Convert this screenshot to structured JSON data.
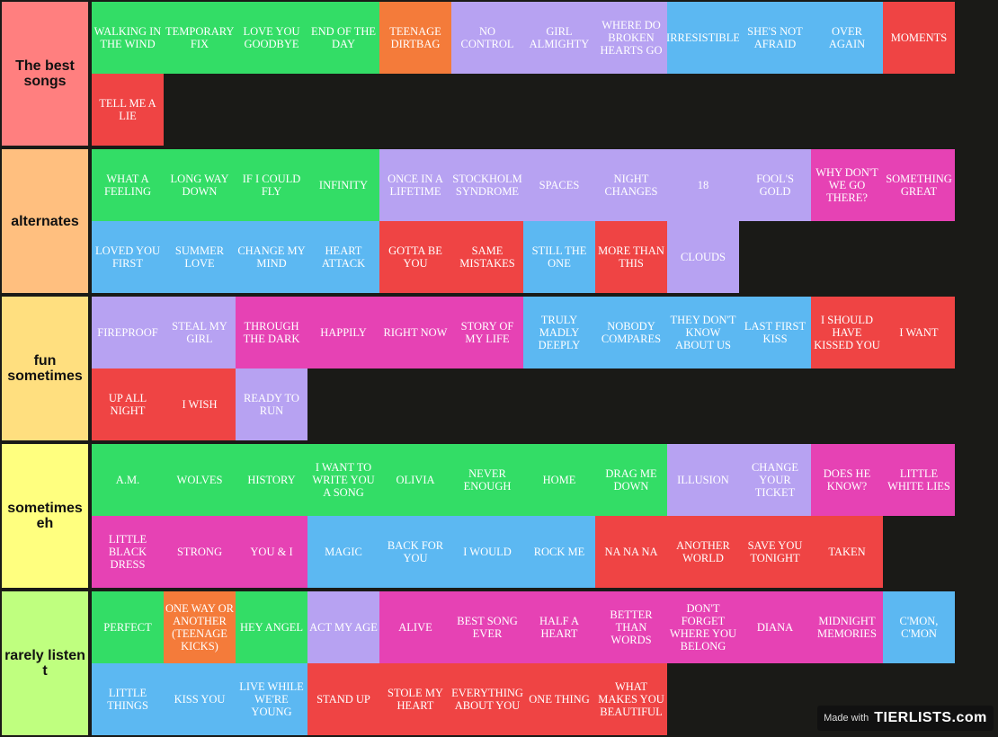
{
  "palette": {
    "green": "#33dd66",
    "orange": "#f47b3a",
    "purple": "#b7a2f2",
    "blue": "#5cb8f2",
    "red": "#ef4444",
    "pink": "#e642b4",
    "background": "#1a1a17"
  },
  "tiers": [
    {
      "label": "The best songs",
      "color": "#ff7f7f",
      "items": [
        {
          "text": "WALKING IN THE WIND",
          "color": "green"
        },
        {
          "text": "TEMPORARY FIX",
          "color": "green"
        },
        {
          "text": "LOVE YOU GOODBYE",
          "color": "green"
        },
        {
          "text": "END OF THE DAY",
          "color": "green"
        },
        {
          "text": "TEENAGE DIRTBAG",
          "color": "orange"
        },
        {
          "text": "NO CONTROL",
          "color": "purple"
        },
        {
          "text": "GIRL ALMIGHTY",
          "color": "purple"
        },
        {
          "text": "WHERE DO BROKEN HEARTS GO",
          "color": "purple"
        },
        {
          "text": "IRRESISTIBLE",
          "color": "blue"
        },
        {
          "text": "SHE'S NOT AFRAID",
          "color": "blue"
        },
        {
          "text": "OVER AGAIN",
          "color": "blue"
        },
        {
          "text": "MOMENTS",
          "color": "red"
        },
        {
          "text": "TELL ME A LIE",
          "color": "red"
        }
      ]
    },
    {
      "label": "alternates",
      "color": "#ffbf7f",
      "items": [
        {
          "text": "WHAT A FEELING",
          "color": "green"
        },
        {
          "text": "LONG WAY DOWN",
          "color": "green"
        },
        {
          "text": "IF I COULD FLY",
          "color": "green"
        },
        {
          "text": "INFINITY",
          "color": "green"
        },
        {
          "text": "ONCE IN A LIFETIME",
          "color": "purple"
        },
        {
          "text": "STOCKHOLM SYNDROME",
          "color": "purple"
        },
        {
          "text": "SPACES",
          "color": "purple"
        },
        {
          "text": "NIGHT CHANGES",
          "color": "purple"
        },
        {
          "text": "18",
          "color": "purple"
        },
        {
          "text": "FOOL'S GOLD",
          "color": "purple"
        },
        {
          "text": "WHY DON'T WE GO THERE?",
          "color": "pink"
        },
        {
          "text": "SOMETHING GREAT",
          "color": "pink"
        },
        {
          "text": "LOVED YOU FIRST",
          "color": "blue"
        },
        {
          "text": "SUMMER LOVE",
          "color": "blue"
        },
        {
          "text": "CHANGE MY MIND",
          "color": "blue"
        },
        {
          "text": "HEART ATTACK",
          "color": "blue"
        },
        {
          "text": "GOTTA BE YOU",
          "color": "red"
        },
        {
          "text": "SAME MISTAKES",
          "color": "red"
        },
        {
          "text": "STILL THE ONE",
          "color": "blue"
        },
        {
          "text": "MORE THAN THIS",
          "color": "red"
        },
        {
          "text": "CLOUDS",
          "color": "purple"
        }
      ]
    },
    {
      "label": "fun sometimes",
      "color": "#ffdf7f",
      "items": [
        {
          "text": "FIREPROOF",
          "color": "purple"
        },
        {
          "text": "STEAL MY GIRL",
          "color": "purple"
        },
        {
          "text": "THROUGH THE DARK",
          "color": "pink"
        },
        {
          "text": "HAPPILY",
          "color": "pink"
        },
        {
          "text": "RIGHT NOW",
          "color": "pink"
        },
        {
          "text": "STORY OF MY LIFE",
          "color": "pink"
        },
        {
          "text": "TRULY MADLY DEEPLY",
          "color": "blue"
        },
        {
          "text": "NOBODY COMPARES",
          "color": "blue"
        },
        {
          "text": "THEY DON'T KNOW ABOUT US",
          "color": "blue"
        },
        {
          "text": "LAST FIRST KISS",
          "color": "blue"
        },
        {
          "text": "I SHOULD HAVE KISSED YOU",
          "color": "red"
        },
        {
          "text": "I WANT",
          "color": "red"
        },
        {
          "text": "UP ALL NIGHT",
          "color": "red"
        },
        {
          "text": "I WISH",
          "color": "red"
        },
        {
          "text": "READY TO RUN",
          "color": "purple"
        }
      ]
    },
    {
      "label": "sometimes eh",
      "color": "#ffff7f",
      "items": [
        {
          "text": "A.M.",
          "color": "green"
        },
        {
          "text": "WOLVES",
          "color": "green"
        },
        {
          "text": "HISTORY",
          "color": "green"
        },
        {
          "text": "I WANT TO WRITE YOU A SONG",
          "color": "green"
        },
        {
          "text": "OLIVIA",
          "color": "green"
        },
        {
          "text": "NEVER ENOUGH",
          "color": "green"
        },
        {
          "text": "HOME",
          "color": "green"
        },
        {
          "text": "DRAG ME DOWN",
          "color": "green"
        },
        {
          "text": "ILLUSION",
          "color": "purple"
        },
        {
          "text": "CHANGE YOUR TICKET",
          "color": "purple"
        },
        {
          "text": "DOES HE KNOW?",
          "color": "pink"
        },
        {
          "text": "LITTLE WHITE LIES",
          "color": "pink"
        },
        {
          "text": "LITTLE BLACK DRESS",
          "color": "pink"
        },
        {
          "text": "STRONG",
          "color": "pink"
        },
        {
          "text": "YOU & I",
          "color": "pink"
        },
        {
          "text": "MAGIC",
          "color": "blue"
        },
        {
          "text": "BACK FOR YOU",
          "color": "blue"
        },
        {
          "text": "I WOULD",
          "color": "blue"
        },
        {
          "text": "ROCK ME",
          "color": "blue"
        },
        {
          "text": "NA NA NA",
          "color": "red"
        },
        {
          "text": "ANOTHER WORLD",
          "color": "red"
        },
        {
          "text": "SAVE YOU TONIGHT",
          "color": "red"
        },
        {
          "text": "TAKEN",
          "color": "red"
        }
      ]
    },
    {
      "label": "rarely listen t",
      "color": "#bfff7f",
      "items": [
        {
          "text": "PERFECT",
          "color": "green"
        },
        {
          "text": "ONE WAY OR ANOTHER (TEENAGE KICKS)",
          "color": "orange"
        },
        {
          "text": "HEY ANGEL",
          "color": "green"
        },
        {
          "text": "ACT MY AGE",
          "color": "purple"
        },
        {
          "text": "ALIVE",
          "color": "pink"
        },
        {
          "text": "BEST SONG EVER",
          "color": "pink"
        },
        {
          "text": "HALF A HEART",
          "color": "pink"
        },
        {
          "text": "BETTER THAN WORDS",
          "color": "pink"
        },
        {
          "text": "DON'T FORGET WHERE YOU BELONG",
          "color": "pink"
        },
        {
          "text": "DIANA",
          "color": "pink"
        },
        {
          "text": "MIDNIGHT MEMORIES",
          "color": "pink"
        },
        {
          "text": "C'MON, C'MON",
          "color": "blue"
        },
        {
          "text": "LITTLE THINGS",
          "color": "blue"
        },
        {
          "text": "KISS YOU",
          "color": "blue"
        },
        {
          "text": "LIVE WHILE WE'RE YOUNG",
          "color": "blue"
        },
        {
          "text": "STAND UP",
          "color": "red"
        },
        {
          "text": "STOLE MY HEART",
          "color": "red"
        },
        {
          "text": "EVERYTHING ABOUT YOU",
          "color": "red"
        },
        {
          "text": "ONE THING",
          "color": "red"
        },
        {
          "text": "WHAT MAKES YOU BEAUTIFUL",
          "color": "red"
        }
      ]
    }
  ],
  "watermark": {
    "made_with": "Made with",
    "brand": "TIERLISTS.com"
  }
}
